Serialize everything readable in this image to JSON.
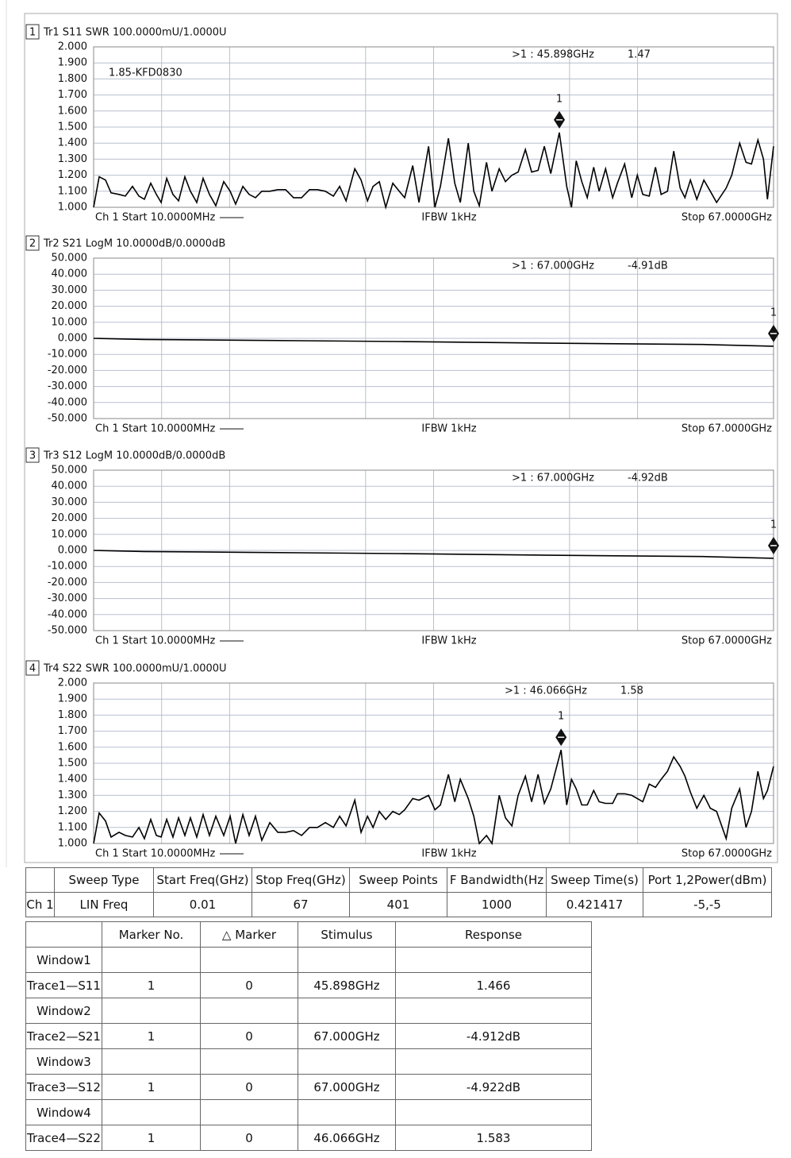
{
  "chart_data": [
    {
      "type": "line",
      "window_number": "1",
      "title": "Tr1 S11 SWR 100.0000mU/1.0000U",
      "annotation": "1.85-KFD0830",
      "footer": [
        "Ch 1 Start 10.0000MHz",
        "IFBW 1kHz",
        "Stop 67.0000GHz"
      ],
      "color": "#000000",
      "grid": true,
      "xlim": [
        0.01,
        67
      ],
      "ylim": [
        1,
        2
      ],
      "yticks": [
        {
          "value": 1,
          "label": "1.000"
        },
        {
          "value": 1.1,
          "label": "1.100"
        },
        {
          "value": 1.2,
          "label": "1.200"
        },
        {
          "value": 1.3,
          "label": "1.300"
        },
        {
          "value": 1.4,
          "label": "1.400"
        },
        {
          "value": 1.5,
          "label": "1.500"
        },
        {
          "value": 1.6,
          "label": "1.600"
        },
        {
          "value": 1.7,
          "label": "1.700"
        },
        {
          "value": 1.8,
          "label": "1.800"
        },
        {
          "value": 1.9,
          "label": "1.900"
        },
        {
          "value": 2,
          "label": "2.000"
        }
      ],
      "x": [
        0.01,
        0.56,
        1.18,
        1.73,
        2.51,
        3.14,
        3.84,
        4.47,
        5.01,
        5.64,
        6.19,
        6.66,
        7.21,
        7.83,
        8.38,
        9.0,
        9.55,
        10.17,
        10.8,
        11.42,
        12.05,
        12.83,
        13.46,
        14.0,
        14.71,
        15.33,
        15.96,
        16.58,
        17.37,
        18.15,
        18.93,
        19.71,
        20.5,
        21.28,
        22.06,
        22.84,
        23.63,
        24.25,
        24.88,
        25.74,
        26.36,
        26.99,
        27.54,
        28.16,
        28.79,
        29.49,
        30.12,
        30.66,
        31.45,
        32.07,
        33.01,
        33.64,
        34.18,
        34.97,
        35.59,
        36.14,
        36.92,
        37.47,
        38.01,
        38.72,
        39.26,
        39.97,
        40.59,
        41.22,
        41.84,
        42.55,
        43.17,
        43.8,
        44.42,
        45.05,
        45.898,
        46.62,
        47.09,
        47.56,
        48.11,
        48.65,
        49.28,
        49.82,
        50.45,
        51.15,
        51.62,
        52.33,
        53.03,
        53.58,
        54.12,
        54.75,
        55.37,
        55.92,
        56.55,
        57.17,
        57.8,
        58.27,
        58.81,
        59.44,
        60.14,
        60.77,
        61.39,
        62.33,
        62.88,
        63.66,
        64.29,
        64.83,
        65.46,
        66.01,
        66.4,
        67
      ],
      "values": [
        1.0,
        1.19,
        1.17,
        1.09,
        1.08,
        1.07,
        1.13,
        1.07,
        1.05,
        1.15,
        1.08,
        1.03,
        1.18,
        1.08,
        1.04,
        1.19,
        1.1,
        1.03,
        1.18,
        1.08,
        1.01,
        1.16,
        1.1,
        1.02,
        1.13,
        1.08,
        1.06,
        1.1,
        1.1,
        1.11,
        1.11,
        1.06,
        1.06,
        1.11,
        1.11,
        1.1,
        1.07,
        1.13,
        1.04,
        1.24,
        1.17,
        1.04,
        1.13,
        1.16,
        1.0,
        1.15,
        1.1,
        1.06,
        1.26,
        1.03,
        1.38,
        1.0,
        1.13,
        1.43,
        1.15,
        1.03,
        1.4,
        1.1,
        1.01,
        1.28,
        1.1,
        1.24,
        1.16,
        1.2,
        1.22,
        1.36,
        1.22,
        1.23,
        1.38,
        1.21,
        1.466,
        1.13,
        1.0,
        1.29,
        1.16,
        1.06,
        1.25,
        1.1,
        1.24,
        1.06,
        1.15,
        1.27,
        1.06,
        1.2,
        1.08,
        1.07,
        1.25,
        1.08,
        1.1,
        1.35,
        1.12,
        1.06,
        1.17,
        1.05,
        1.17,
        1.1,
        1.03,
        1.12,
        1.2,
        1.4,
        1.28,
        1.27,
        1.42,
        1.3,
        1.05,
        1.38
      ],
      "marker": {
        "number": "1",
        "readout": ">1 : 45.898GHz",
        "x": 45.898,
        "value": 1.466,
        "value_label": "1.47"
      }
    },
    {
      "type": "line",
      "window_number": "2",
      "title": "Tr2 S21 LogM 10.0000dB/0.0000dB",
      "footer": [
        "Ch 1 Start 10.0000MHz",
        "IFBW 1kHz",
        "Stop 67.0000GHz"
      ],
      "color": "#000000",
      "grid": true,
      "xlim": [
        0.01,
        67
      ],
      "ylim": [
        -50,
        50
      ],
      "yticks": [
        {
          "value": -50,
          "label": "-50.000"
        },
        {
          "value": -40,
          "label": "-40.000"
        },
        {
          "value": -30,
          "label": "-30.000"
        },
        {
          "value": -20,
          "label": "-20.000"
        },
        {
          "value": -10,
          "label": "-10.000"
        },
        {
          "value": 0,
          "label": "0.000"
        },
        {
          "value": 10,
          "label": "10.000"
        },
        {
          "value": 20,
          "label": "20.000"
        },
        {
          "value": 30,
          "label": "30.000"
        },
        {
          "value": 40,
          "label": "40.000"
        },
        {
          "value": 50,
          "label": "50.000"
        }
      ],
      "x": [
        0.01,
        5,
        15,
        30,
        45,
        60,
        67
      ],
      "values": [
        0,
        -0.7,
        -1.2,
        -2.0,
        -3.0,
        -3.8,
        -4.912
      ],
      "marker": {
        "number": "1",
        "readout": ">1 : 67.000GHz",
        "x": 67,
        "value": -4.912,
        "value_label": "-4.91dB"
      }
    },
    {
      "type": "line",
      "window_number": "3",
      "title": "Tr3 S12 LogM 10.0000dB/0.0000dB",
      "footer": [
        "Ch 1 Start 10.0000MHz",
        "IFBW 1kHz",
        "Stop 67.0000GHz"
      ],
      "color": "#000000",
      "grid": true,
      "xlim": [
        0.01,
        67
      ],
      "ylim": [
        -50,
        50
      ],
      "yticks": [
        {
          "value": -50,
          "label": "-50.000"
        },
        {
          "value": -40,
          "label": "-40.000"
        },
        {
          "value": -30,
          "label": "-30.000"
        },
        {
          "value": -20,
          "label": "-20.000"
        },
        {
          "value": -10,
          "label": "-10.000"
        },
        {
          "value": 0,
          "label": "0.000"
        },
        {
          "value": 10,
          "label": "10.000"
        },
        {
          "value": 20,
          "label": "20.000"
        },
        {
          "value": 30,
          "label": "30.000"
        },
        {
          "value": 40,
          "label": "40.000"
        },
        {
          "value": 50,
          "label": "50.000"
        }
      ],
      "x": [
        0.01,
        5,
        15,
        30,
        45,
        60,
        67
      ],
      "values": [
        0,
        -0.7,
        -1.2,
        -2.0,
        -3.0,
        -3.8,
        -4.922
      ],
      "marker": {
        "number": "1",
        "readout": ">1 : 67.000GHz",
        "x": 67,
        "value": -4.922,
        "value_label": "-4.92dB"
      }
    },
    {
      "type": "line",
      "window_number": "4",
      "title": "Tr4 S22 SWR 100.0000mU/1.0000U",
      "footer": [
        "Ch 1 Start 10.0000MHz",
        "IFBW 1kHz",
        "Stop 67.0000GHz"
      ],
      "color": "#000000",
      "grid": true,
      "xlim": [
        0.01,
        67
      ],
      "ylim": [
        1,
        2
      ],
      "yticks": [
        {
          "value": 1,
          "label": "1.000"
        },
        {
          "value": 1.1,
          "label": "1.100"
        },
        {
          "value": 1.2,
          "label": "1.200"
        },
        {
          "value": 1.3,
          "label": "1.300"
        },
        {
          "value": 1.4,
          "label": "1.400"
        },
        {
          "value": 1.5,
          "label": "1.500"
        },
        {
          "value": 1.6,
          "label": "1.600"
        },
        {
          "value": 1.7,
          "label": "1.700"
        },
        {
          "value": 1.8,
          "label": "1.800"
        },
        {
          "value": 1.9,
          "label": "1.900"
        },
        {
          "value": 2,
          "label": "2.000"
        }
      ],
      "x": [
        0.01,
        0.56,
        1.18,
        1.73,
        2.51,
        3.14,
        3.84,
        4.47,
        5.01,
        5.64,
        6.19,
        6.66,
        7.21,
        7.83,
        8.38,
        9.0,
        9.55,
        10.17,
        10.8,
        11.42,
        12.05,
        12.83,
        13.46,
        14.0,
        14.71,
        15.33,
        15.96,
        16.58,
        17.37,
        18.15,
        18.93,
        19.71,
        20.5,
        21.28,
        22.06,
        22.84,
        23.63,
        24.25,
        24.88,
        25.74,
        26.36,
        26.99,
        27.54,
        28.16,
        28.79,
        29.49,
        30.12,
        30.66,
        31.45,
        32.07,
        33.01,
        33.64,
        34.18,
        34.97,
        35.59,
        36.14,
        36.92,
        37.47,
        38.01,
        38.72,
        39.26,
        39.97,
        40.59,
        41.22,
        41.84,
        42.55,
        43.17,
        43.8,
        44.42,
        45.05,
        46.066,
        46.62,
        47.09,
        47.56,
        48.11,
        48.65,
        49.28,
        49.82,
        50.45,
        51.15,
        51.62,
        52.33,
        53.03,
        53.58,
        54.12,
        54.75,
        55.37,
        55.92,
        56.55,
        57.17,
        57.8,
        58.27,
        58.81,
        59.44,
        60.14,
        60.77,
        61.39,
        62.33,
        62.88,
        63.66,
        64.29,
        64.83,
        65.46,
        66.01,
        66.4,
        67
      ],
      "values": [
        1.0,
        1.19,
        1.14,
        1.04,
        1.07,
        1.05,
        1.04,
        1.1,
        1.03,
        1.15,
        1.05,
        1.04,
        1.15,
        1.04,
        1.16,
        1.05,
        1.16,
        1.04,
        1.18,
        1.05,
        1.17,
        1.05,
        1.17,
        1.0,
        1.18,
        1.05,
        1.17,
        1.02,
        1.13,
        1.07,
        1.07,
        1.08,
        1.05,
        1.1,
        1.1,
        1.13,
        1.1,
        1.17,
        1.11,
        1.27,
        1.07,
        1.17,
        1.1,
        1.2,
        1.15,
        1.2,
        1.18,
        1.21,
        1.28,
        1.27,
        1.3,
        1.21,
        1.24,
        1.43,
        1.26,
        1.4,
        1.28,
        1.17,
        1.0,
        1.05,
        1.0,
        1.3,
        1.16,
        1.11,
        1.3,
        1.42,
        1.26,
        1.43,
        1.25,
        1.34,
        1.583,
        1.24,
        1.4,
        1.34,
        1.24,
        1.24,
        1.33,
        1.26,
        1.25,
        1.25,
        1.31,
        1.31,
        1.3,
        1.28,
        1.26,
        1.37,
        1.35,
        1.4,
        1.45,
        1.54,
        1.48,
        1.42,
        1.32,
        1.22,
        1.3,
        1.22,
        1.2,
        1.03,
        1.22,
        1.34,
        1.1,
        1.2,
        1.45,
        1.28,
        1.33,
        1.48
      ],
      "marker": {
        "number": "1",
        "readout": ">1 : 46.066GHz",
        "x": 46.066,
        "value": 1.583,
        "value_label": "1.58"
      }
    }
  ],
  "settings_table": {
    "columns": [
      "Sweep Type",
      "Start Freq(GHz)",
      "Stop Freq(GHz)",
      "Sweep Points",
      "F Bandwidth(Hz",
      "Sweep Time(s)",
      "Port 1,2Power(dBm)"
    ],
    "rows": [
      {
        "label": "Ch 1",
        "cells": [
          "LIN Freq",
          0.01,
          67,
          401,
          1000,
          0.421417,
          "-5,-5"
        ]
      }
    ]
  },
  "marker_table": {
    "columns": [
      "Marker No.",
      "△ Marker",
      "Stimulus",
      "Response"
    ],
    "windows": [
      {
        "name": "Window1",
        "trace": "Trace1—S11",
        "cells": [
          1,
          0,
          "45.898GHz",
          1.466
        ]
      },
      {
        "name": "Window2",
        "trace": "Trace2—S21",
        "cells": [
          1,
          0,
          "67.000GHz",
          "-4.912dB"
        ]
      },
      {
        "name": "Window3",
        "trace": "Trace3—S12",
        "cells": [
          1,
          0,
          "67.000GHz",
          "-4.922dB"
        ]
      },
      {
        "name": "Window4",
        "trace": "Trace4—S22",
        "cells": [
          1,
          0,
          "46.066GHz",
          1.583
        ]
      }
    ]
  }
}
